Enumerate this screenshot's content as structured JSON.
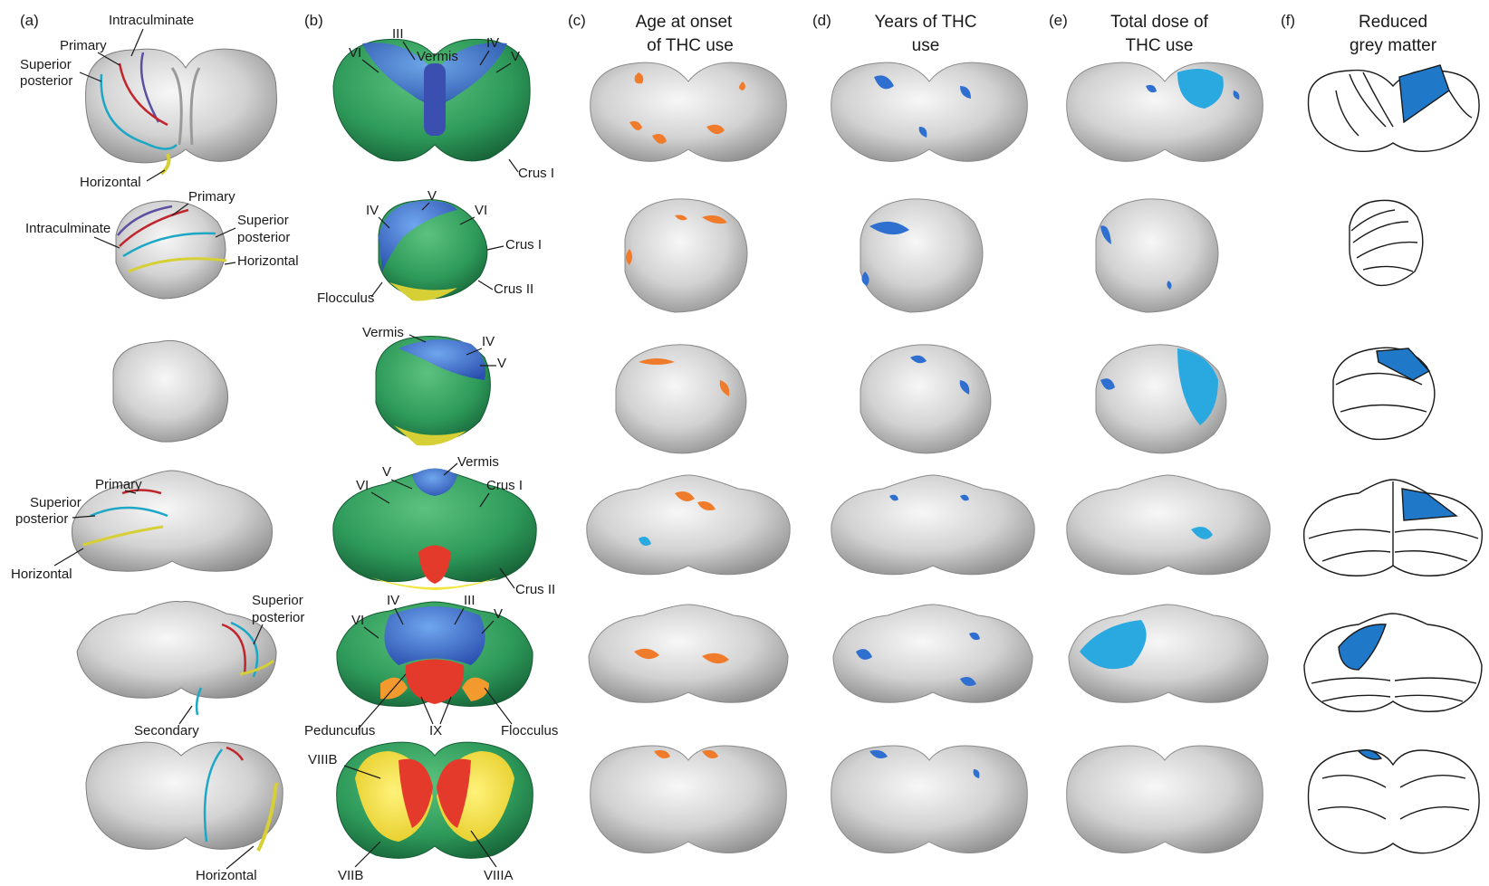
{
  "panels": [
    {
      "letter": "(a)",
      "title": [
        "",
        ""
      ]
    },
    {
      "letter": "(b)",
      "title": [
        "",
        ""
      ]
    },
    {
      "letter": "(c)",
      "title": [
        "Age at onset",
        "of THC use"
      ]
    },
    {
      "letter": "(d)",
      "title": [
        "Years of  THC",
        "use"
      ]
    },
    {
      "letter": "(e)",
      "title": [
        "Total dose of",
        "THC use"
      ]
    },
    {
      "letter": "(f)",
      "title": [
        "Reduced",
        "grey matter"
      ]
    }
  ],
  "labels_a": {
    "r1": [
      "Intraculminate",
      "Primary",
      "Superior",
      "posterior",
      "Horizontal"
    ],
    "r2": [
      "Primary",
      "Intraculminate",
      "Superior",
      "posterior",
      "Horizontal"
    ],
    "r4": [
      "Primary",
      "Superior",
      "posterior",
      "Horizontal"
    ],
    "r5": [
      "Superior",
      "posterior",
      "Secondary"
    ],
    "r6": [
      "Horizontal"
    ]
  },
  "labels_b": {
    "r1": [
      "III",
      "VI",
      "Vermis",
      "IV",
      "V",
      "Crus I"
    ],
    "r2": [
      "V",
      "IV",
      "VI",
      "Crus I",
      "Flocculus",
      "Crus II"
    ],
    "r3": [
      "Vermis",
      "IV",
      "V"
    ],
    "r4": [
      "Vermis",
      "V",
      "VI",
      "Crus I",
      "Crus II"
    ],
    "r5": [
      "IV",
      "III",
      "VI",
      "V",
      "Pedunculus",
      "IX",
      "Flocculus"
    ],
    "r6": [
      "VIIIB",
      "VIIB",
      "VIIIA"
    ]
  },
  "colors": {
    "grey": "#c9c9c9",
    "grey_dark": "#8f8f8f",
    "orange": "#f07b2b",
    "blue": "#2f6fd0",
    "cyan": "#2aa8e0",
    "line_red": "#c0262c",
    "line_purple": "#5a4fa0",
    "line_cyan": "#1ba7c5",
    "line_yellow": "#d6cf35",
    "vermis_blue": "#3e5fbf",
    "ant_blue": "#3f86d8",
    "green": "#2e9a5a",
    "green_dark": "#1f7a47",
    "yellow": "#f2e43a",
    "red": "#e43a2c",
    "fill_blue": "#1f78c8"
  }
}
